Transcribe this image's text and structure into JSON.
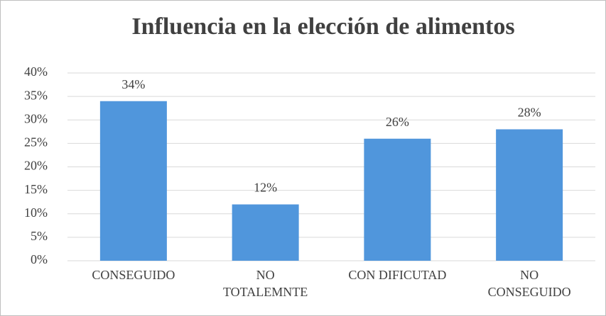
{
  "chart_data": {
    "type": "bar",
    "title": "Influencia en la elección de alimentos",
    "categories": [
      "CONSEGUIDO",
      "NO\nTOTALEMNTE",
      "CON DIFICUTAD",
      "NO\nCONSEGUIDO"
    ],
    "values": [
      34,
      12,
      26,
      28
    ],
    "value_labels": [
      "34%",
      "12%",
      "26%",
      "28%"
    ],
    "color": "#5096dc",
    "ylim": [
      0,
      40
    ],
    "yticks": [
      {
        "value": 0,
        "label": "0%"
      },
      {
        "value": 5,
        "label": "5%"
      },
      {
        "value": 10,
        "label": "10%"
      },
      {
        "value": 15,
        "label": "15%"
      },
      {
        "value": 20,
        "label": "20%"
      },
      {
        "value": 25,
        "label": "25%"
      },
      {
        "value": 30,
        "label": "30%"
      },
      {
        "value": 35,
        "label": "35%"
      },
      {
        "value": 40,
        "label": "40%"
      }
    ],
    "grid": true
  }
}
